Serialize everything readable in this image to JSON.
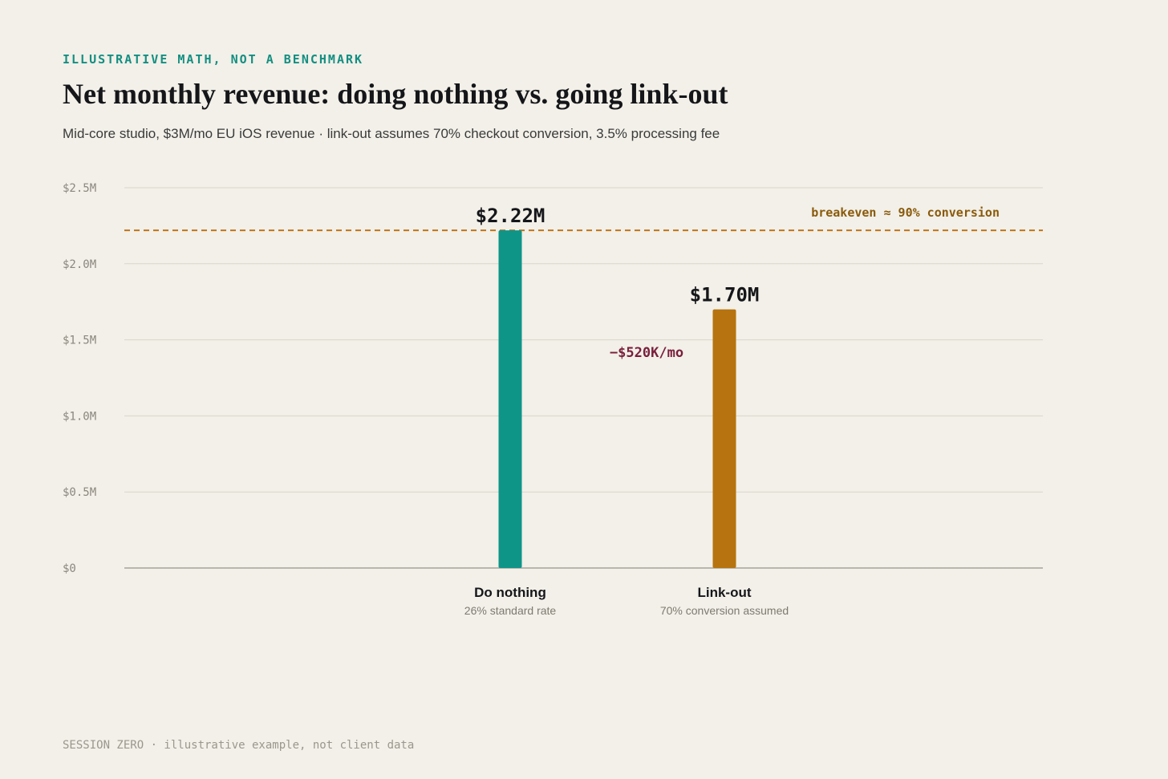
{
  "eyebrow": "ILLUSTRATIVE MATH, NOT A BENCHMARK",
  "title": "Net monthly revenue: doing nothing vs. going link-out",
  "subtitle": "Mid-core studio, $3M/mo EU iOS revenue · link-out assumes 70% checkout conversion, 3.5% processing fee",
  "footer": "SESSION ZERO · illustrative example, not client data",
  "colors": {
    "background": "#f2f0e8",
    "eyebrow": "#138e82",
    "do_nothing_bar": "#0f9488",
    "link_out_bar": "#b7730f",
    "reference_line": "#c0741a",
    "reference_label": "#8a5a0c",
    "difference_label": "#7a1f3d",
    "gridline": "#d9d6cc",
    "baseline": "#b9b6ad"
  },
  "chart_data": {
    "type": "bar",
    "categories": [
      "Do nothing",
      "Link-out"
    ],
    "category_sublabels": [
      "26% standard rate",
      "70% conversion assumed"
    ],
    "values": [
      2.22,
      1.7
    ],
    "value_labels": [
      "$2.22M",
      "$1.70M"
    ],
    "unit": "$M",
    "ylim": [
      0,
      2.5
    ],
    "yticks": [
      0,
      0.5,
      1.0,
      1.5,
      2.0,
      2.5
    ],
    "ytick_labels": [
      "$0",
      "$0.5M",
      "$1.0M",
      "$1.5M",
      "$2.0M",
      "$2.5M"
    ],
    "grid": true,
    "reference_line": {
      "value": 2.22,
      "label": "breakeven ≈ 90% conversion",
      "style": "dashed"
    },
    "difference_annotation": {
      "label": "−$520K/mo",
      "value": -0.52
    }
  }
}
